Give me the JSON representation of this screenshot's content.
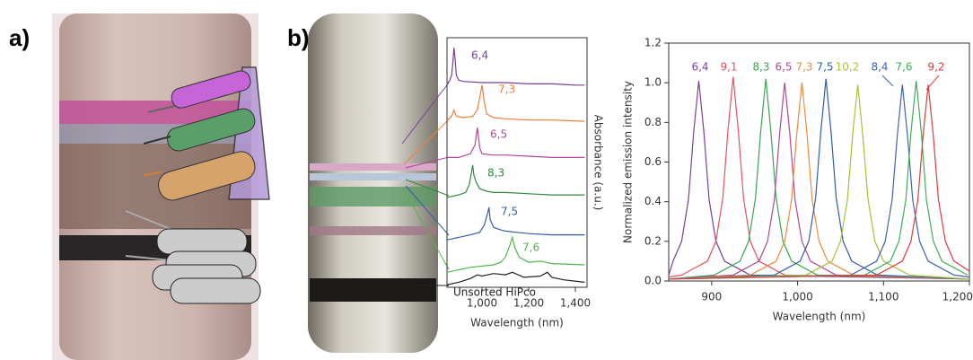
{
  "panel_labels": [
    "a)",
    "b)"
  ],
  "chart_data": [
    {
      "type": "line",
      "xlabel": "Wavelength (nm)",
      "ylabel": "Absorbance (a.u.)",
      "xlim": [
        850,
        1450
      ],
      "ylim": [
        0,
        10
      ],
      "xticks": [
        {
          "value": 1000,
          "label": "1,000"
        },
        {
          "value": 1200,
          "label": "1,200"
        },
        {
          "value": 1400,
          "label": "1,400"
        }
      ],
      "series": [
        {
          "name": "6,4",
          "color": "#7b3f98",
          "x": [
            850,
            860,
            870,
            875,
            880,
            885,
            890,
            900,
            920,
            1000,
            1100,
            1200,
            1300,
            1400,
            1440
          ],
          "values": [
            8.2,
            8.25,
            8.5,
            9.0,
            9.6,
            9.1,
            8.5,
            8.3,
            8.25,
            8.2,
            8.2,
            8.15,
            8.15,
            8.1,
            8.1
          ]
        },
        {
          "name": "7,3",
          "color": "#f07f3a",
          "x": [
            850,
            870,
            880,
            890,
            920,
            960,
            980,
            990,
            1000,
            1010,
            1020,
            1050,
            1100,
            1200,
            1300,
            1440
          ],
          "values": [
            6.7,
            6.85,
            7.1,
            6.85,
            6.8,
            6.85,
            7.1,
            7.6,
            8.1,
            7.4,
            6.95,
            6.8,
            6.75,
            6.7,
            6.7,
            6.65
          ]
        },
        {
          "name": "6,5",
          "color": "#b0479a",
          "x": [
            850,
            900,
            950,
            970,
            980,
            990,
            1000,
            1050,
            1100,
            1200,
            1300,
            1440
          ],
          "values": [
            5.2,
            5.2,
            5.35,
            5.7,
            6.4,
            5.6,
            5.35,
            5.3,
            5.3,
            5.25,
            5.2,
            5.2
          ]
        },
        {
          "name": "8,3",
          "color": "#2f8a3e",
          "x": [
            850,
            900,
            930,
            945,
            955,
            960,
            965,
            975,
            990,
            1020,
            1050,
            1100,
            1200,
            1300,
            1440
          ],
          "values": [
            3.6,
            3.7,
            3.8,
            4.1,
            4.6,
            4.9,
            4.5,
            4.2,
            3.95,
            3.85,
            3.8,
            3.8,
            3.75,
            3.7,
            3.7
          ]
        },
        {
          "name": "7,5",
          "color": "#2f5fa8",
          "x": [
            850,
            900,
            950,
            990,
            1010,
            1025,
            1030,
            1035,
            1050,
            1080,
            1100,
            1150,
            1200,
            1300,
            1440
          ],
          "values": [
            1.9,
            2.0,
            2.1,
            2.2,
            2.5,
            3.0,
            3.2,
            2.7,
            2.4,
            2.3,
            2.25,
            2.2,
            2.15,
            2.1,
            2.1
          ]
        },
        {
          "name": "7,6",
          "color": "#4fb848",
          "x": [
            850,
            900,
            950,
            1000,
            1050,
            1080,
            1100,
            1120,
            1130,
            1140,
            1160,
            1200,
            1250,
            1300,
            1440
          ],
          "values": [
            0.6,
            0.7,
            0.8,
            0.85,
            0.9,
            1.0,
            1.2,
            1.7,
            2.0,
            1.6,
            1.2,
            1.0,
            1.05,
            0.95,
            0.9
          ]
        },
        {
          "name": "Unsorted HiPco",
          "color": "#222222",
          "x": [
            850,
            900,
            950,
            980,
            1000,
            1050,
            1100,
            1130,
            1180,
            1250,
            1280,
            1300,
            1350,
            1440
          ],
          "values": [
            0.1,
            0.2,
            0.35,
            0.5,
            0.45,
            0.55,
            0.5,
            0.6,
            0.4,
            0.45,
            0.6,
            0.4,
            0.3,
            0.2
          ]
        }
      ]
    },
    {
      "type": "line",
      "xlabel": "Wavelength (nm)",
      "ylabel": "Normalized emission intensity",
      "xlim": [
        850,
        1200
      ],
      "ylim": [
        0,
        1.2
      ],
      "xticks": [
        900,
        {
          "value": 1000,
          "label": "1,000"
        },
        {
          "value": 1100,
          "label": "1,100"
        },
        {
          "value": 1200,
          "label": "1,200"
        }
      ],
      "yticks": [
        {
          "value": 0,
          "label": "0.0"
        },
        0.2,
        0.4,
        0.6,
        0.8,
        {
          "value": 1,
          "label": "1.0"
        },
        1.2
      ],
      "series": [
        {
          "name": "6,4",
          "color": "#7b3f98",
          "x": [
            850,
            855,
            865,
            873,
            879,
            885,
            891,
            897,
            905,
            915,
            945,
            1200
          ],
          "values": [
            0.03,
            0.1,
            0.2,
            0.41,
            0.75,
            1.01,
            0.75,
            0.41,
            0.2,
            0.1,
            0.03,
            0.01
          ]
        },
        {
          "name": "9,1",
          "color": "#e8505b",
          "x": [
            850,
            865,
            895,
            905,
            913,
            919,
            925,
            931,
            937,
            945,
            955,
            985,
            1200
          ],
          "values": [
            0.02,
            0.03,
            0.1,
            0.2,
            0.42,
            0.76,
            1.03,
            0.76,
            0.42,
            0.2,
            0.1,
            0.03,
            0.01
          ]
        },
        {
          "name": "8,3",
          "color": "#3aa655",
          "x": [
            850,
            903,
            933,
            943,
            951,
            957,
            963,
            969,
            975,
            983,
            993,
            1023,
            1200
          ],
          "values": [
            0.01,
            0.03,
            0.1,
            0.2,
            0.42,
            0.75,
            1.02,
            0.75,
            0.42,
            0.2,
            0.1,
            0.03,
            0.01
          ]
        },
        {
          "name": "6,5",
          "color": "#b0479a",
          "x": [
            850,
            925,
            955,
            965,
            973,
            979,
            985,
            991,
            997,
            1005,
            1015,
            1045,
            1200
          ],
          "values": [
            0.01,
            0.03,
            0.1,
            0.2,
            0.41,
            0.74,
            1.0,
            0.74,
            0.41,
            0.2,
            0.1,
            0.03,
            0.01
          ]
        },
        {
          "name": "7,3",
          "color": "#f08a3c",
          "x": [
            850,
            945,
            975,
            985,
            993,
            999,
            1005,
            1011,
            1017,
            1025,
            1035,
            1065,
            1200
          ],
          "values": [
            0.01,
            0.03,
            0.1,
            0.2,
            0.41,
            0.74,
            1.0,
            0.74,
            0.41,
            0.2,
            0.1,
            0.03,
            0.01
          ]
        },
        {
          "name": "7,5",
          "color": "#2f5fa8",
          "x": [
            850,
            973,
            1003,
            1013,
            1021,
            1027,
            1033,
            1039,
            1045,
            1053,
            1063,
            1093,
            1200
          ],
          "values": [
            0.01,
            0.03,
            0.1,
            0.2,
            0.42,
            0.75,
            1.02,
            0.75,
            0.42,
            0.2,
            0.1,
            0.03,
            0.01
          ]
        },
        {
          "name": "10,2",
          "color": "#a6c23a",
          "x": [
            850,
            1010,
            1040,
            1050,
            1058,
            1064,
            1070,
            1076,
            1082,
            1090,
            1100,
            1130,
            1200
          ],
          "values": [
            0.01,
            0.03,
            0.1,
            0.2,
            0.41,
            0.73,
            0.99,
            0.73,
            0.41,
            0.2,
            0.1,
            0.03,
            0.01
          ]
        },
        {
          "name": "8,4",
          "color": "#3f63b0",
          "x": [
            850,
            1062,
            1092,
            1102,
            1110,
            1116,
            1122,
            1128,
            1134,
            1142,
            1152,
            1182,
            1200
          ],
          "values": [
            0.01,
            0.03,
            0.1,
            0.2,
            0.41,
            0.73,
            0.99,
            0.73,
            0.41,
            0.2,
            0.1,
            0.03,
            0.02
          ]
        },
        {
          "name": "7,6",
          "color": "#3fae5a",
          "x": [
            850,
            1078,
            1108,
            1118,
            1126,
            1132,
            1138,
            1144,
            1150,
            1158,
            1168,
            1198
          ],
          "values": [
            0.01,
            0.03,
            0.1,
            0.2,
            0.41,
            0.75,
            1.01,
            0.75,
            0.41,
            0.2,
            0.1,
            0.03
          ]
        },
        {
          "name": "9,2",
          "color": "#e33b3b",
          "x": [
            850,
            1092,
            1122,
            1132,
            1140,
            1146,
            1152,
            1158,
            1164,
            1172,
            1182,
            1200
          ],
          "values": [
            0.01,
            0.03,
            0.1,
            0.2,
            0.41,
            0.73,
            0.99,
            0.73,
            0.41,
            0.2,
            0.1,
            0.05
          ]
        }
      ]
    }
  ]
}
